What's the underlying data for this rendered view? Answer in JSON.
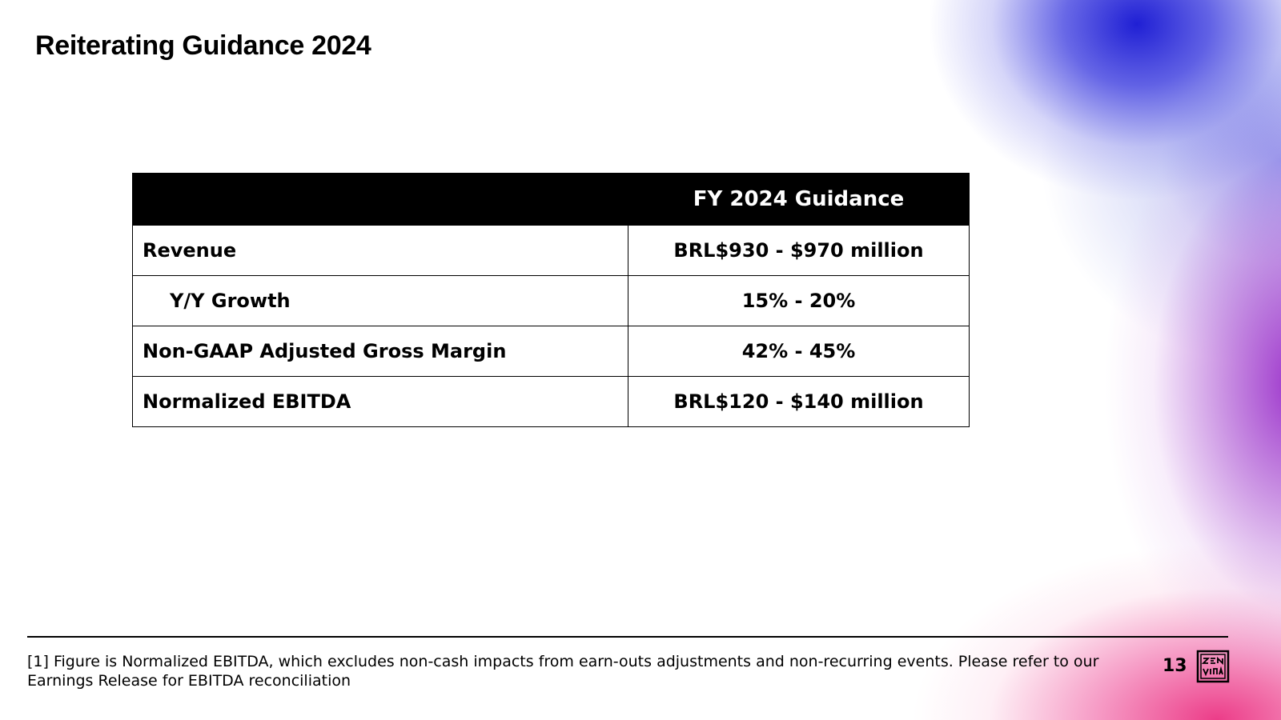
{
  "slide": {
    "title": "Reiterating Guidance 2024",
    "page_number": "13",
    "logo_icon": "zenvia-logo-icon"
  },
  "table": {
    "header": {
      "label": "",
      "value": "FY 2024 Guidance"
    },
    "rows": [
      {
        "label": "Revenue",
        "value": "BRL$930 - $970 million"
      },
      {
        "label": "Y/Y Growth",
        "value": "15% - 20%"
      },
      {
        "label": "Non-GAAP Adjusted Gross Margin",
        "value": "42% - 45%"
      },
      {
        "label": "Normalized EBITDA",
        "value": "BRL$120 - $140 million"
      }
    ]
  },
  "footnote": "[1] Figure is Normalized EBITDA, which excludes non-cash impacts from earn-outs adjustments and non-recurring events. Please refer to our Earnings Release for EBITDA reconciliation",
  "colors": {
    "header_bg": "#000000",
    "header_text": "#ffffff",
    "gradient_blue": "#1414d2",
    "gradient_purple": "#9628c8",
    "gradient_pink": "#eb3282"
  }
}
